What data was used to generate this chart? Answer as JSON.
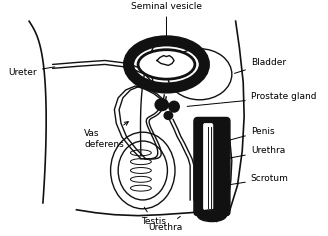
{
  "background_color": "#ffffff",
  "line_color": "#111111",
  "fill_dark": "#111111",
  "labels": {
    "seminal_vesicle": "Seminal vesicle",
    "ureter": "Ureter",
    "bladder": "Bladder",
    "prostate_gland": "Prostate gland",
    "penis": "Penis",
    "urethra_right": "Urethra",
    "scrotum": "Scrotum",
    "vas_deferens": "Vas\ndeferens",
    "testis": "Testis",
    "urethra_bottom": "Urethra"
  },
  "fontsize": 6.5,
  "figsize": [
    3.28,
    2.36
  ],
  "dpi": 100
}
